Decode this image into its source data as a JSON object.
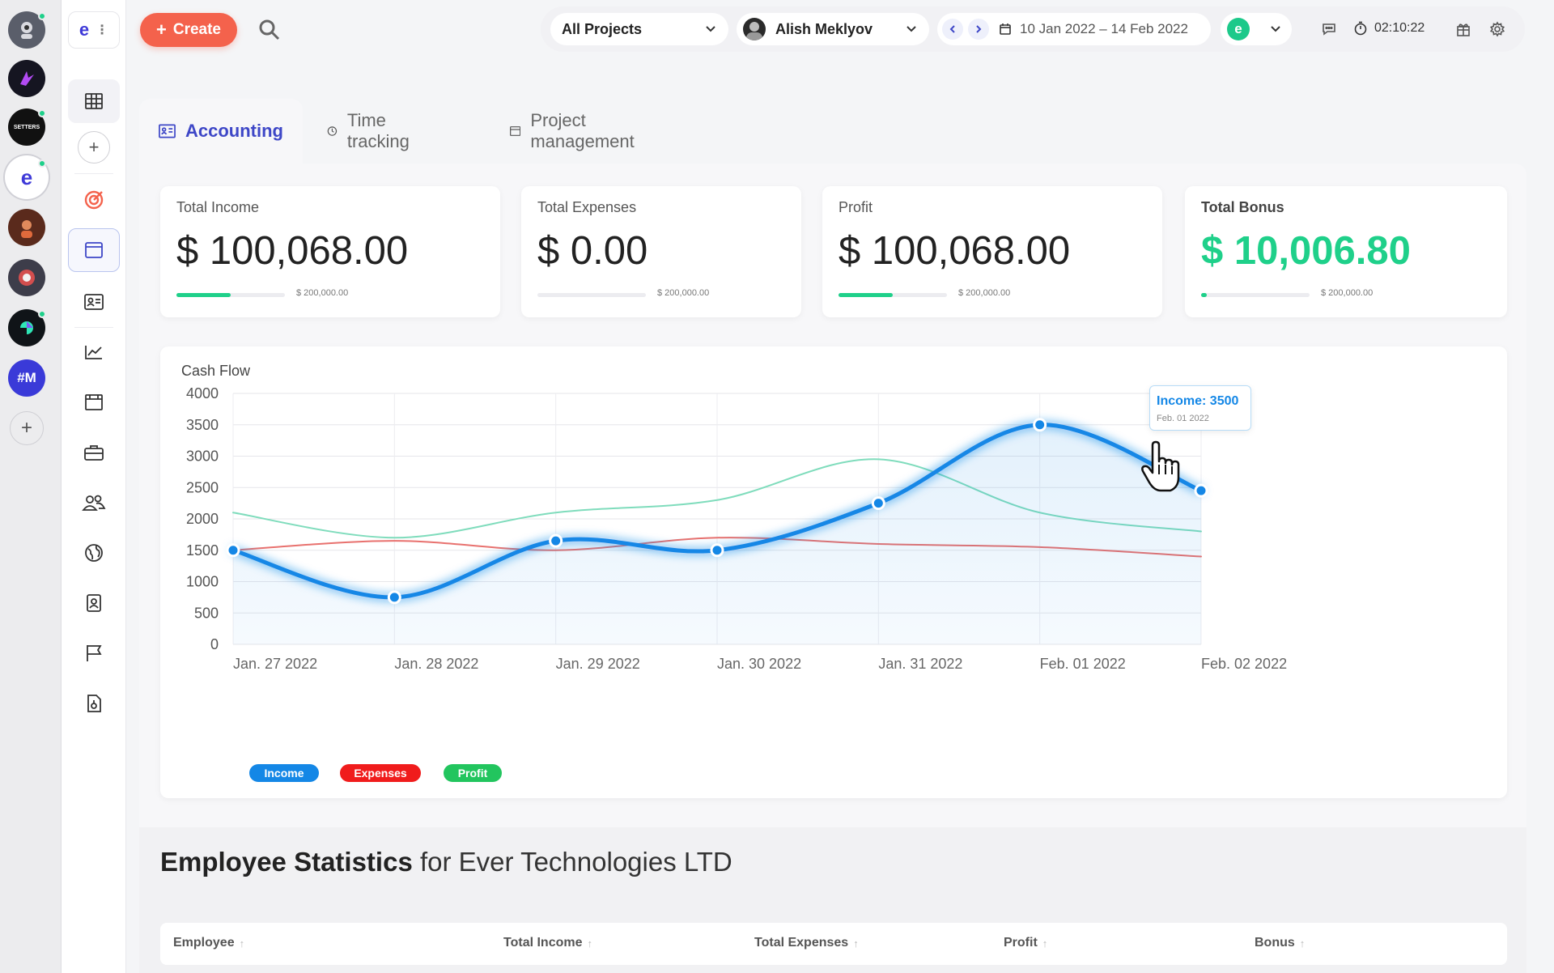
{
  "workspaces": [
    {
      "name": "workspace-1",
      "color": "#555a66",
      "label": "",
      "online": true
    },
    {
      "name": "workspace-2",
      "color": "#151521",
      "label": "",
      "online": false
    },
    {
      "name": "workspace-3",
      "color": "#111111",
      "label": "SETTERS",
      "online": true
    },
    {
      "name": "workspace-ever",
      "color": "#ffffff",
      "label": "e",
      "online": true,
      "active": true
    },
    {
      "name": "workspace-5",
      "color": "#5a2a1c",
      "label": "",
      "online": false
    },
    {
      "name": "workspace-6",
      "color": "#3d3d4a",
      "label": "",
      "online": false
    },
    {
      "name": "workspace-7",
      "color": "#101418",
      "label": "",
      "online": true
    },
    {
      "name": "workspace-8",
      "color": "#3a3ad8",
      "label": "#M",
      "online": false
    }
  ],
  "nav": {
    "logo": "e",
    "items": [
      "grid-icon",
      "add-icon",
      "target-icon",
      "browser-icon",
      "id-card-icon",
      "chart-icon",
      "calendar-window-icon",
      "briefcase-icon",
      "users-icon",
      "globe-icon",
      "contacts-icon",
      "flag-icon",
      "document-icon"
    ]
  },
  "header": {
    "create_label": "Create",
    "project_select": "All Projects",
    "user_select": "Alish Meklyov",
    "date_range": "10 Jan 2022 – 14 Feb 2022",
    "org_logo": "e",
    "timer": "02:10:22"
  },
  "tabs": [
    {
      "label": "Accounting",
      "icon": "id-card-icon",
      "active": true
    },
    {
      "label": "Time tracking",
      "icon": "clock-icon",
      "active": false
    },
    {
      "label": "Project management",
      "icon": "window-icon",
      "active": false
    }
  ],
  "cards": [
    {
      "label": "Total Income",
      "value": "$ 100,068.00",
      "max": "$ 200,000.00",
      "progress": 0.5
    },
    {
      "label": "Total Expenses",
      "value": "$ 0.00",
      "max": "$ 200,000.00",
      "progress": 0
    },
    {
      "label": "Profit",
      "value": "$ 100,068.00",
      "max": "$ 200,000.00",
      "progress": 0.5
    },
    {
      "label": "Total Bonus",
      "value": "$ 10,006.80",
      "max": "$ 200,000.00",
      "progress": 0.05
    }
  ],
  "chart_data": {
    "type": "line",
    "title": "Cash Flow",
    "categories": [
      "Jan. 27 2022",
      "Jan. 28 2022",
      "Jan. 29 2022",
      "Jan. 30 2022",
      "Jan. 31 2022",
      "Feb. 01 2022",
      "Feb. 02 2022"
    ],
    "ylim": [
      0,
      4000
    ],
    "yticks": [
      0,
      500,
      1000,
      1500,
      2000,
      2500,
      3000,
      3500,
      4000
    ],
    "grid": true,
    "legend_position": "bottom-left",
    "series": [
      {
        "name": "Income",
        "color": "#1487e6",
        "values": [
          1500,
          750,
          1650,
          1500,
          2250,
          3500,
          2450
        ]
      },
      {
        "name": "Expenses",
        "color": "#e8716e",
        "values": [
          1500,
          1650,
          1500,
          1700,
          1600,
          1550,
          1400
        ]
      },
      {
        "name": "Profit",
        "color": "#7fdcbc",
        "values": [
          2100,
          1700,
          2100,
          2300,
          2950,
          2100,
          1800
        ]
      }
    ],
    "legend_colors": {
      "Income": "#1487e6",
      "Expenses": "#f01c1c",
      "Profit": "#22c55e"
    },
    "tooltip": {
      "label": "Income: 3500",
      "date": "Feb. 01 2022"
    }
  },
  "employee_stats": {
    "title_bold": "Employee Statistics",
    "title_rest": " for Ever Technologies LTD",
    "columns": [
      "Employee",
      "Total Income",
      "Total Expenses",
      "Profit",
      "Bonus"
    ]
  }
}
